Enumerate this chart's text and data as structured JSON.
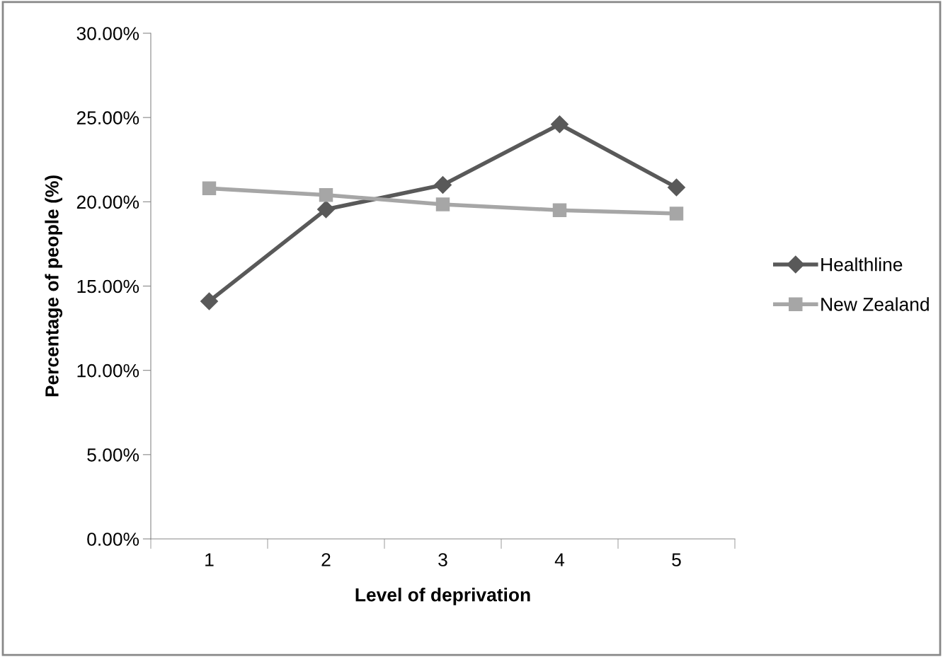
{
  "chart_data": {
    "type": "line",
    "xlabel": "Level of deprivation",
    "ylabel": "Percentage of people (%)",
    "categories": [
      "1",
      "2",
      "3",
      "4",
      "5"
    ],
    "series": [
      {
        "name": "Healthline",
        "color": "#595959",
        "marker": "diamond",
        "values": [
          14.1,
          19.55,
          21.0,
          24.6,
          20.85
        ]
      },
      {
        "name": "New Zealand",
        "color": "#a6a6a6",
        "marker": "square",
        "values": [
          20.8,
          20.4,
          19.85,
          19.5,
          19.3
        ]
      }
    ],
    "ylim": [
      0,
      30
    ],
    "yticks": [
      {
        "value": 0,
        "label": "0.00%"
      },
      {
        "value": 5,
        "label": "5.00%"
      },
      {
        "value": 10,
        "label": "10.00%"
      },
      {
        "value": 15,
        "label": "15.00%"
      },
      {
        "value": 20,
        "label": "20.00%"
      },
      {
        "value": 25,
        "label": "25.00%"
      },
      {
        "value": 30,
        "label": "30.00%"
      }
    ],
    "grid": false,
    "legend": "right",
    "line_style": "solid"
  }
}
